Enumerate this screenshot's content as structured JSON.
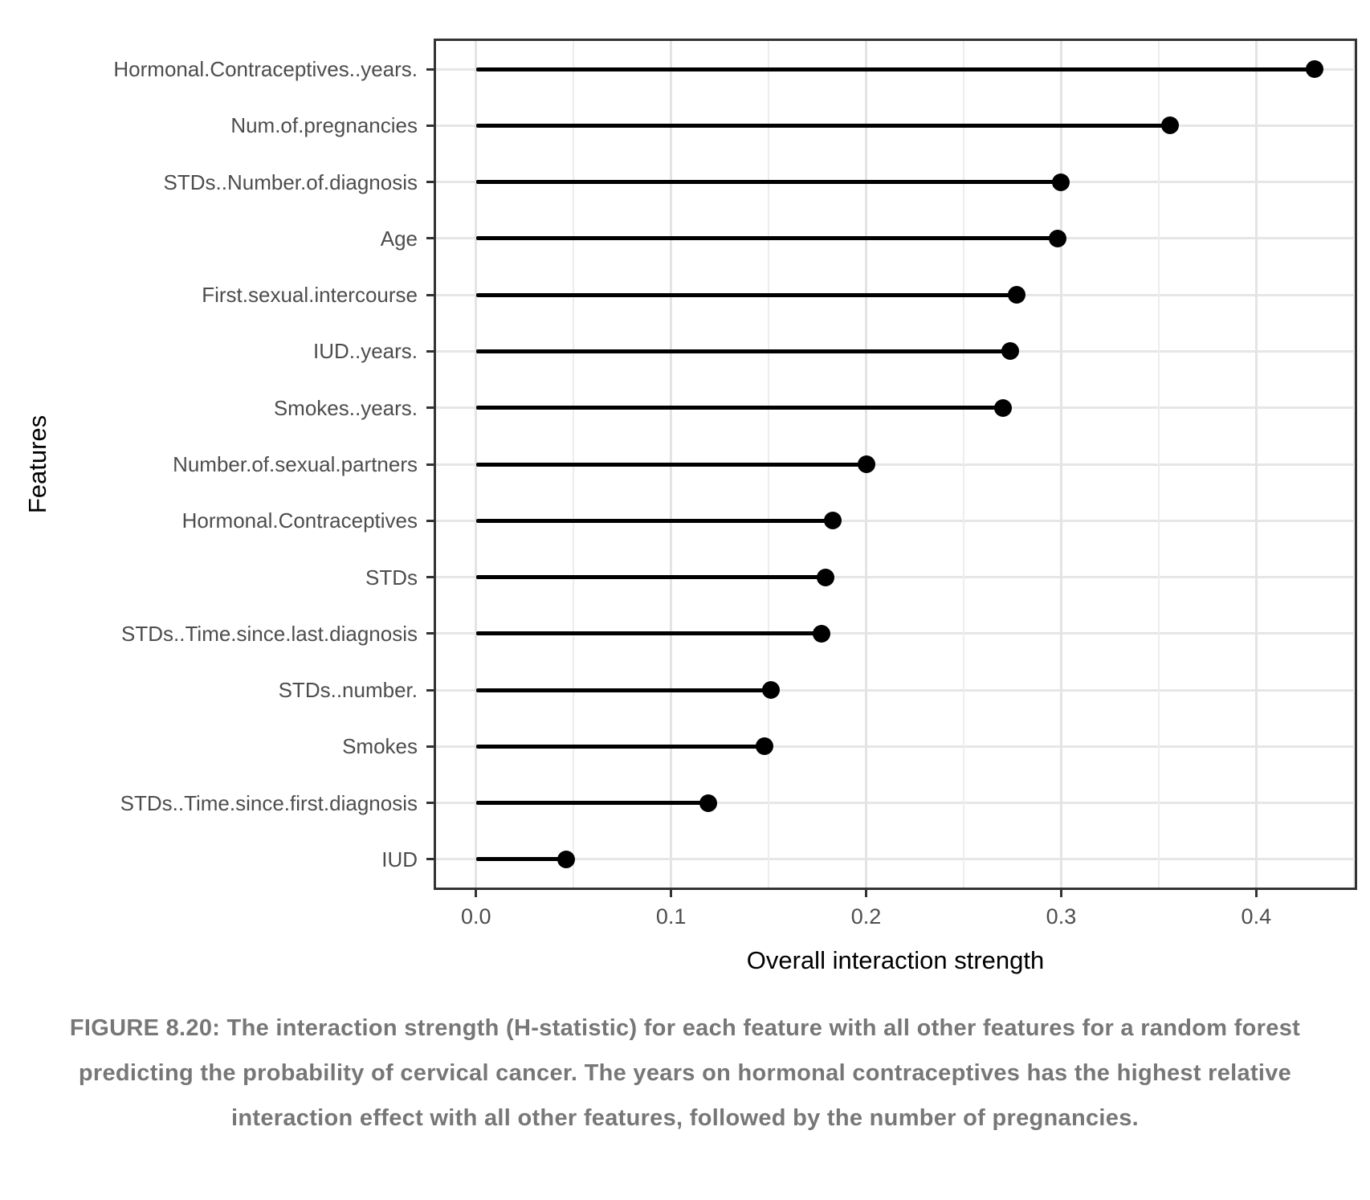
{
  "figure": {
    "caption": "FIGURE 8.20: The interaction strength (H-statistic) for each feature with all other features for a random forest predicting the probability of cervical cancer. The years on hormonal contraceptives has the highest relative interaction effect with all other features, followed by the number of pregnancies."
  },
  "chart_data": {
    "type": "bar",
    "variant": "horizontal-lollipop",
    "title": "",
    "xlabel": "Overall interaction strength",
    "ylabel": "Features",
    "categories": [
      "Hormonal.Contraceptives..years.",
      "Num.of.pregnancies",
      "STDs..Number.of.diagnosis",
      "Age",
      "First.sexual.intercourse",
      "IUD..years.",
      "Smokes..years.",
      "Number.of.sexual.partners",
      "Hormonal.Contraceptives",
      "STDs",
      "STDs..Time.since.last.diagnosis",
      "STDs..number.",
      "Smokes",
      "STDs..Time.since.first.diagnosis",
      "IUD"
    ],
    "values": [
      0.43,
      0.356,
      0.3,
      0.298,
      0.277,
      0.274,
      0.27,
      0.2,
      0.183,
      0.179,
      0.177,
      0.151,
      0.148,
      0.119,
      0.046
    ],
    "xlim": [
      -0.0205,
      0.4505
    ],
    "x_major_ticks": [
      0.0,
      0.1,
      0.2,
      0.3,
      0.4
    ],
    "x_tick_labels": [
      "0.0",
      "0.1",
      "0.2",
      "0.3",
      "0.4"
    ],
    "x_minor_gridlines": [
      0.05,
      0.15,
      0.25,
      0.35,
      0.45
    ],
    "grid": true,
    "legend": false,
    "colors": {
      "point": "#000000",
      "stem": "#000000",
      "grid_major": "#e4e4e4",
      "grid_minor": "#ededed",
      "panel_border": "#333333",
      "axis_text": "#4d4d4d",
      "axis_title": "#000000",
      "caption": "#777777",
      "background": "#ffffff"
    }
  }
}
